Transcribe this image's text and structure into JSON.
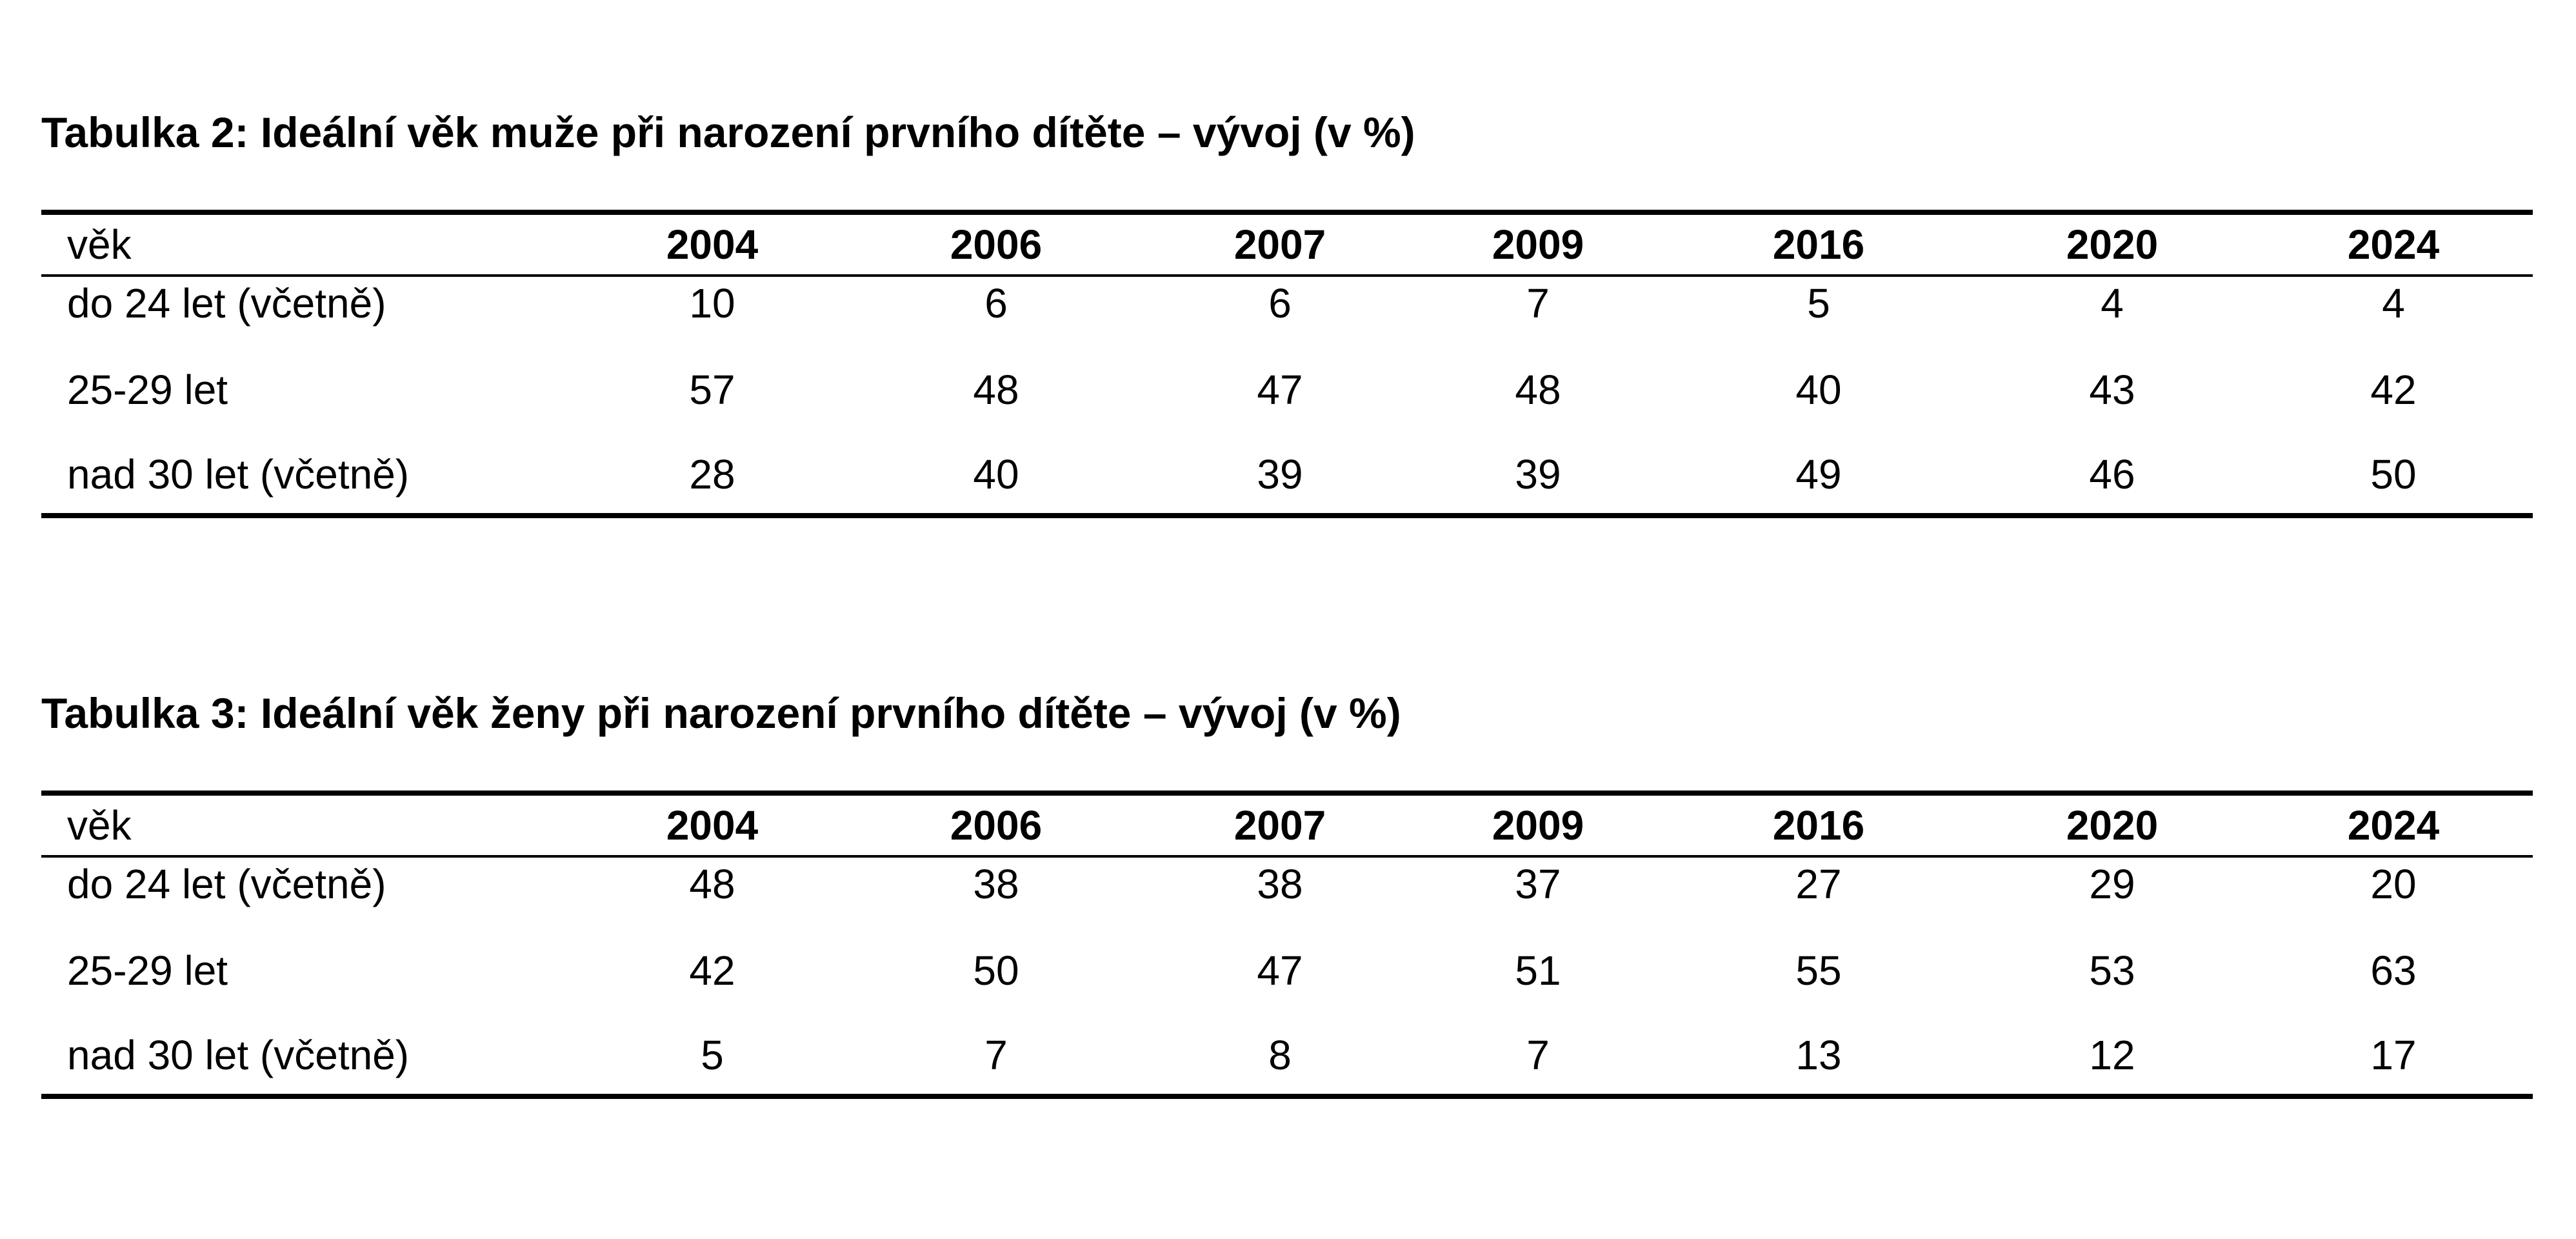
{
  "tables": [
    {
      "title": "Tabulka 2: Ideální věk muže při narození prvního dítěte – vývoj (v %)",
      "header": [
        "věk",
        "2004",
        "2006",
        "2007",
        "2009",
        "2016",
        "2020",
        "2024"
      ],
      "rows": [
        [
          "do 24 let (včetně)",
          "10",
          "6",
          "6",
          "7",
          "5",
          "4",
          "4"
        ],
        [
          "25-29 let",
          "57",
          "48",
          "47",
          "48",
          "40",
          "43",
          "42"
        ],
        [
          "nad 30 let (včetně)",
          "28",
          "40",
          "39",
          "39",
          "49",
          "46",
          "50"
        ]
      ]
    },
    {
      "title": "Tabulka 3: Ideální věk ženy při narození prvního dítěte – vývoj (v %)",
      "header": [
        "věk",
        "2004",
        "2006",
        "2007",
        "2009",
        "2016",
        "2020",
        "2024"
      ],
      "rows": [
        [
          "do 24 let (včetně)",
          "48",
          "38",
          "38",
          "37",
          "27",
          "29",
          "20"
        ],
        [
          "25-29 let",
          "42",
          "50",
          "47",
          "51",
          "55",
          "53",
          "63"
        ],
        [
          "nad 30 let (včetně)",
          "5",
          "7",
          "8",
          "7",
          "13",
          "12",
          "17"
        ]
      ]
    }
  ]
}
